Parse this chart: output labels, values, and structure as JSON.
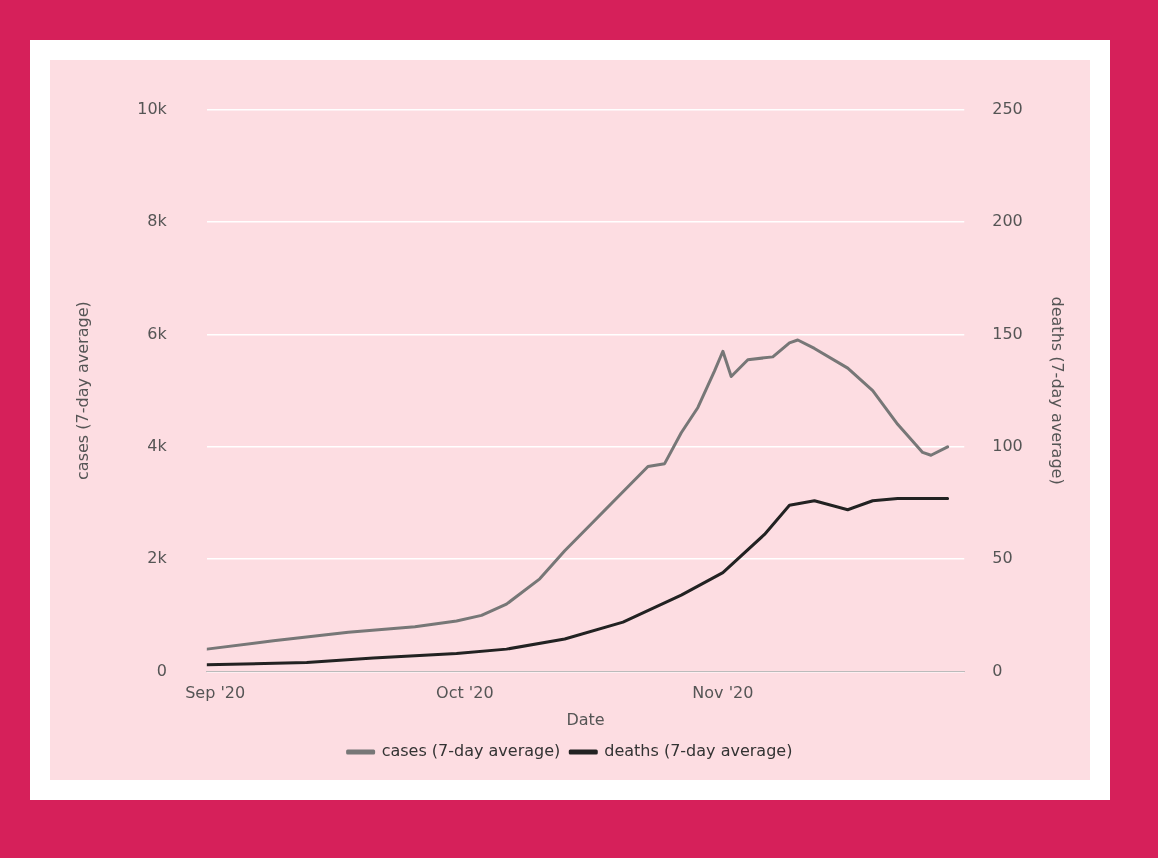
{
  "chart_data": {
    "type": "line",
    "xlabel": "Date",
    "ylabel": "cases (7-day average)",
    "y2label": "deaths (7-day average)",
    "xlim": [
      "2020-08-31",
      "2020-11-30"
    ],
    "xticks": [
      {
        "value": "2020-09-01",
        "label": "Sep '20"
      },
      {
        "value": "2020-10-01",
        "label": "Oct '20"
      },
      {
        "value": "2020-11-01",
        "label": "Nov '20"
      }
    ],
    "ylim": [
      0,
      10000
    ],
    "yticks": [
      0,
      {
        "value": 2000,
        "label": "2k"
      },
      {
        "value": 4000,
        "label": "4k"
      },
      {
        "value": 6000,
        "label": "6k"
      },
      {
        "value": 8000,
        "label": "8k"
      },
      {
        "value": 10000,
        "label": "10k"
      }
    ],
    "y2lim": [
      0,
      250
    ],
    "y2ticks": [
      0,
      50,
      100,
      150,
      200,
      250
    ],
    "grid": "y",
    "legend": "bottom",
    "marker": "none",
    "line_style": "solid",
    "series": [
      {
        "name": "cases (7-day average)",
        "color": "#777777",
        "x": [
          "2020-08-31",
          "2020-09-08",
          "2020-09-17",
          "2020-09-25",
          "2020-09-30",
          "2020-10-03",
          "2020-10-06",
          "2020-10-10",
          "2020-10-13",
          "2020-10-16",
          "2020-10-20",
          "2020-10-23",
          "2020-10-25",
          "2020-10-27",
          "2020-10-29",
          "2020-10-31",
          "2020-11-01",
          "2020-11-02",
          "2020-11-04",
          "2020-11-07",
          "2020-11-09",
          "2020-11-10",
          "2020-11-12",
          "2020-11-16",
          "2020-11-19",
          "2020-11-22",
          "2020-11-25",
          "2020-11-26",
          "2020-11-28"
        ],
        "values": [
          400,
          550,
          700,
          800,
          900,
          1000,
          1200,
          1650,
          2150,
          2600,
          3200,
          3650,
          3700,
          4250,
          4700,
          5350,
          5700,
          5250,
          5550,
          5600,
          5850,
          5900,
          5750,
          5400,
          5000,
          4400,
          3900,
          3850,
          4000
        ]
      },
      {
        "name": "deaths (7-day average)",
        "color": "#222222",
        "axis": "y2",
        "x": [
          "2020-08-31",
          "2020-09-12",
          "2020-09-20",
          "2020-09-30",
          "2020-10-06",
          "2020-10-13",
          "2020-10-20",
          "2020-10-27",
          "2020-11-01",
          "2020-11-06",
          "2020-11-09",
          "2020-11-12",
          "2020-11-16",
          "2020-11-19",
          "2020-11-22",
          "2020-11-28"
        ],
        "values": [
          3,
          4,
          6,
          8,
          10,
          14.5,
          22,
          34,
          44,
          61,
          74,
          76,
          72,
          76,
          77,
          77
        ]
      }
    ]
  }
}
